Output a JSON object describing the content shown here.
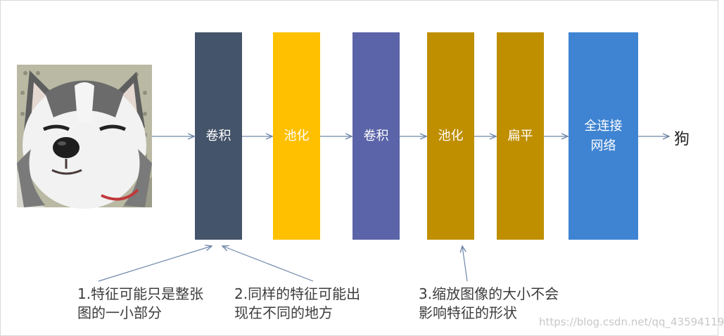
{
  "blocks": [
    {
      "label": "卷积",
      "color": "#44546a"
    },
    {
      "label": "池化",
      "color": "#ffc000"
    },
    {
      "label": "卷积",
      "color": "#5b64a8"
    },
    {
      "label": "池化",
      "color": "#bf8f00"
    },
    {
      "label": "扁平",
      "color": "#bf8f00"
    },
    {
      "label": "全连接网络",
      "color": "#3f84d2"
    }
  ],
  "output_label": "狗",
  "notes": [
    "1.特征可能只是整张图的一小部分",
    "2.同样的特征可能出现在不同的地方",
    "3.缩放图像的大小不会影响特征的形状"
  ],
  "watermark": "https://blog.csdn.net/qq_43594119",
  "colors": {
    "arrow": "#6f87a8",
    "text": "#3c3c3c"
  }
}
